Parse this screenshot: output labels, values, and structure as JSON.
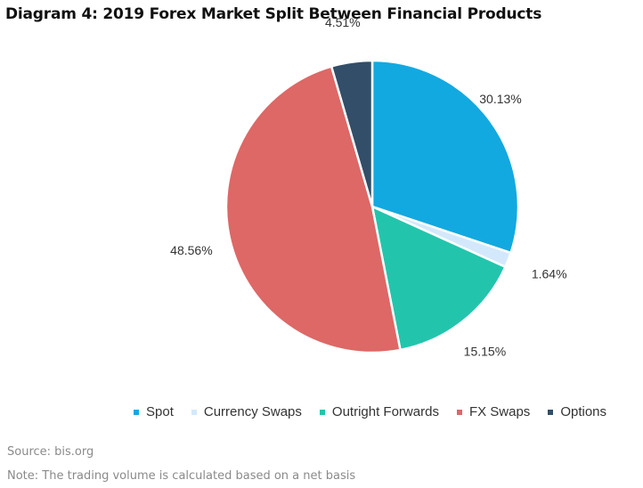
{
  "title": "Diagram 4: 2019 Forex Market Split Between Financial Products",
  "chart_data": {
    "type": "pie",
    "title": "Diagram 4: 2019 Forex Market Split Between Financial Products",
    "unit": "%",
    "legend_position": "bottom",
    "slices": [
      {
        "name": "Spot",
        "value": 30.13,
        "label": "30.13%",
        "color": "#12A9E1"
      },
      {
        "name": "Currency Swaps",
        "value": 1.64,
        "label": "1.64%",
        "color": "#D3E9FB"
      },
      {
        "name": "Outright Forwards",
        "value": 15.15,
        "label": "15.15%",
        "color": "#22C5AC"
      },
      {
        "name": "FX Swaps",
        "value": 48.56,
        "label": "48.56%",
        "color": "#DD6866"
      },
      {
        "name": "Options",
        "value": 4.51,
        "label": "4.51%",
        "color": "#324E69"
      }
    ]
  },
  "footer": {
    "source": "Source: bis.org",
    "note": "Note: The trading volume is calculated based on a net basis"
  }
}
